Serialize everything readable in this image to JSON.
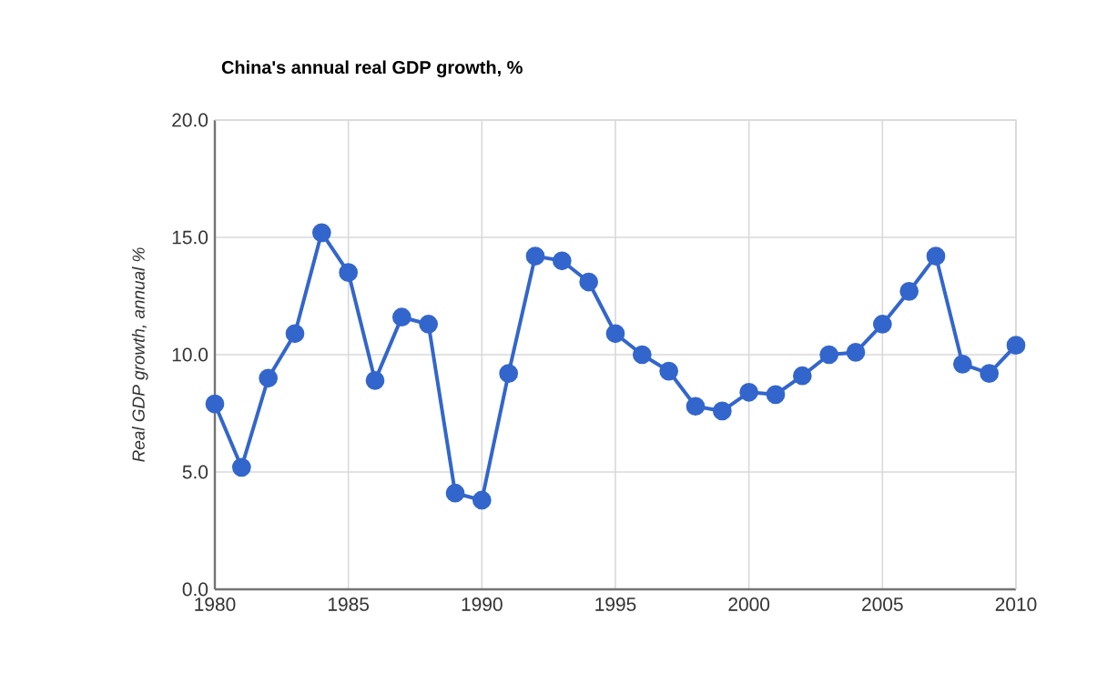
{
  "chart_data": {
    "type": "line",
    "title": "China's annual real GDP growth, %",
    "ylabel": "Real GDP growth, annual %",
    "x": [
      1980,
      1981,
      1982,
      1983,
      1984,
      1985,
      1986,
      1987,
      1988,
      1989,
      1990,
      1991,
      1992,
      1993,
      1994,
      1995,
      1996,
      1997,
      1998,
      1999,
      2000,
      2001,
      2002,
      2003,
      2004,
      2005,
      2006,
      2007,
      2008,
      2009,
      2010
    ],
    "series": [
      {
        "color": "#3366cc",
        "values": [
          7.9,
          5.2,
          9.0,
          10.9,
          15.2,
          13.5,
          8.9,
          11.6,
          11.3,
          4.1,
          3.8,
          9.2,
          14.2,
          14.0,
          13.1,
          10.9,
          10.0,
          9.3,
          7.8,
          7.6,
          8.4,
          8.3,
          9.1,
          10.0,
          10.1,
          11.3,
          12.7,
          14.2,
          9.6,
          9.2,
          10.4
        ]
      }
    ],
    "xlim": [
      1980,
      2010
    ],
    "xticks": [
      1980,
      1985,
      1990,
      1995,
      2000,
      2005,
      2010
    ],
    "ylim": [
      0,
      20
    ],
    "yticks": [
      {
        "value": 0,
        "label": "0.0"
      },
      {
        "value": 5,
        "label": "5.0"
      },
      {
        "value": 10,
        "label": "10.0"
      },
      {
        "value": 15,
        "label": "15.0"
      },
      {
        "value": 20,
        "label": "20.0"
      }
    ],
    "grid": true,
    "marker": "circle",
    "line_style": "solid"
  }
}
